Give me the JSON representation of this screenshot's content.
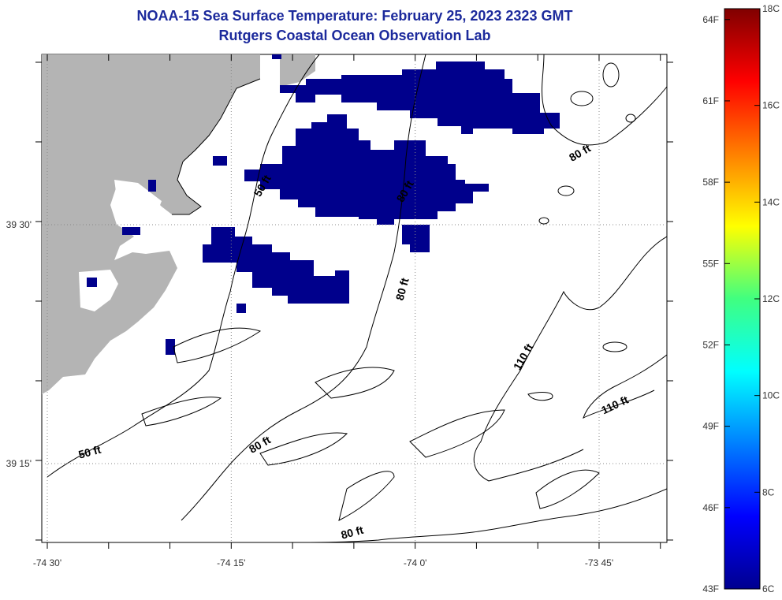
{
  "title": "NOAA-15 Sea Surface Temperature:  February 25, 2023 2323 GMT",
  "subtitle": "Rutgers Coastal Ocean Observation Lab",
  "map": {
    "lon_ticks": [
      {
        "value": -74.5,
        "label": "-74 30'"
      },
      {
        "value": -74.25,
        "label": "-74 15'"
      },
      {
        "value": -74.0,
        "label": "-74 0'"
      },
      {
        "value": -73.75,
        "label": "-73 45'"
      }
    ],
    "lat_ticks": [
      {
        "value": 39.5,
        "label": "39 30'"
      },
      {
        "value": 39.25,
        "label": "39 15'"
      }
    ],
    "contour_labels": [
      {
        "text": "50 ft",
        "rotate": -60
      },
      {
        "text": "80 ft",
        "rotate": -60
      },
      {
        "text": "80 ft",
        "rotate": -30
      },
      {
        "text": "80 ft",
        "rotate": -75
      },
      {
        "text": "110 ft",
        "rotate": -60
      },
      {
        "text": "110 ft",
        "rotate": -25
      },
      {
        "text": "50 ft",
        "rotate": -15
      },
      {
        "text": "80 ft",
        "rotate": -30
      },
      {
        "text": "80 ft",
        "rotate": -15
      }
    ],
    "colors": {
      "land": "#b4b4b4",
      "sst_cold": "#00008c",
      "contour": "#000000",
      "grid": "#888888"
    }
  },
  "colorbar": {
    "fahrenheit": [
      "64F",
      "61F",
      "58F",
      "55F",
      "52F",
      "49F",
      "46F",
      "43F"
    ],
    "celsius": [
      "18C",
      "16C",
      "14C",
      "12C",
      "10C",
      "8C",
      "6C"
    ],
    "f_range": [
      43,
      64.4
    ],
    "c_range": [
      6,
      18
    ]
  }
}
